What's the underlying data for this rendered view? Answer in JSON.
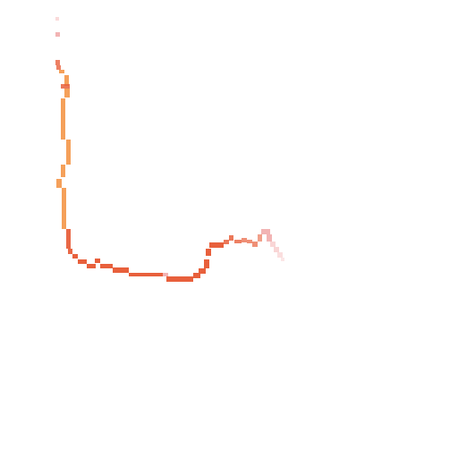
{
  "stroke": {
    "name": "pixel-path-stroke",
    "colors": {
      "orange": "#f5a05a",
      "red_orange": "#e8603c",
      "pink_fade": "#f2b4b4",
      "pale_pink": "#f9d6d6"
    }
  }
}
